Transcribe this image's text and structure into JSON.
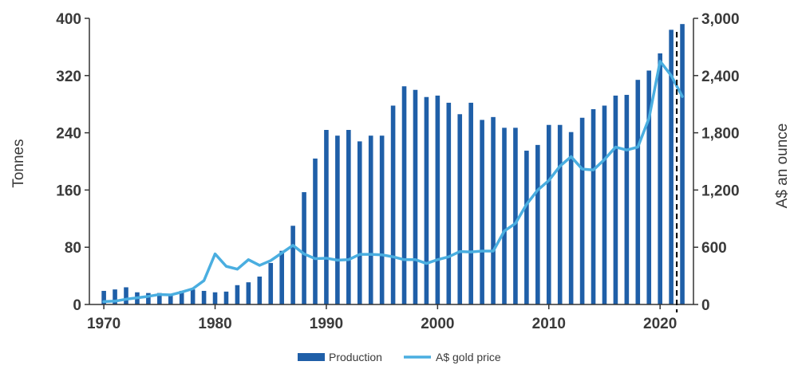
{
  "chart_data": {
    "type": "bar+line",
    "x": [
      1970,
      1971,
      1972,
      1973,
      1974,
      1975,
      1976,
      1977,
      1978,
      1979,
      1980,
      1981,
      1982,
      1983,
      1984,
      1985,
      1986,
      1987,
      1988,
      1989,
      1990,
      1991,
      1992,
      1993,
      1994,
      1995,
      1996,
      1997,
      1998,
      1999,
      2000,
      2001,
      2002,
      2003,
      2004,
      2005,
      2006,
      2007,
      2008,
      2009,
      2010,
      2011,
      2012,
      2013,
      2014,
      2015,
      2016,
      2017,
      2018,
      2019,
      2020,
      2021,
      2022
    ],
    "series": [
      {
        "name": "Production",
        "type": "bar",
        "axis": "left",
        "color": "#1f5fa8",
        "values": [
          19,
          21,
          24,
          17,
          16,
          16,
          15,
          19,
          21,
          19,
          17,
          18,
          27,
          31,
          39,
          58,
          75,
          110,
          157,
          204,
          244,
          236,
          244,
          228,
          236,
          236,
          278,
          305,
          300,
          290,
          292,
          282,
          266,
          282,
          258,
          262,
          247,
          247,
          215,
          223,
          251,
          251,
          241,
          261,
          273,
          278,
          292,
          293,
          314,
          327,
          351,
          384,
          392
        ]
      },
      {
        "name": "A$ gold price",
        "type": "line",
        "axis": "right",
        "color": "#4aaee0",
        "values": [
          30,
          35,
          55,
          70,
          85,
          105,
          100,
          130,
          165,
          250,
          530,
          400,
          370,
          470,
          410,
          460,
          540,
          620,
          530,
          480,
          485,
          465,
          470,
          525,
          525,
          520,
          500,
          470,
          470,
          430,
          470,
          500,
          555,
          550,
          560,
          560,
          770,
          850,
          1050,
          1200,
          1300,
          1450,
          1550,
          1420,
          1410,
          1520,
          1650,
          1620,
          1650,
          1950,
          2550,
          2400,
          2180
        ]
      }
    ],
    "y_left": {
      "label": "Tonnes",
      "lim": [
        0,
        400
      ],
      "ticks": [
        "0",
        "80",
        "160",
        "240",
        "320",
        "400"
      ]
    },
    "y_right": {
      "label": "A$ an ounce",
      "lim": [
        0,
        3000
      ],
      "ticks": [
        "0",
        "600",
        "1,200",
        "1,800",
        "2,400",
        "3,000"
      ]
    },
    "x_ticks": [
      "1970",
      "1980",
      "1990",
      "2000",
      "2010",
      "2020"
    ],
    "forecast_marker_x": 2021.5,
    "legend": {
      "position": "bottom-center",
      "entries": [
        "Production",
        "A$ gold price"
      ]
    },
    "grid": false
  }
}
